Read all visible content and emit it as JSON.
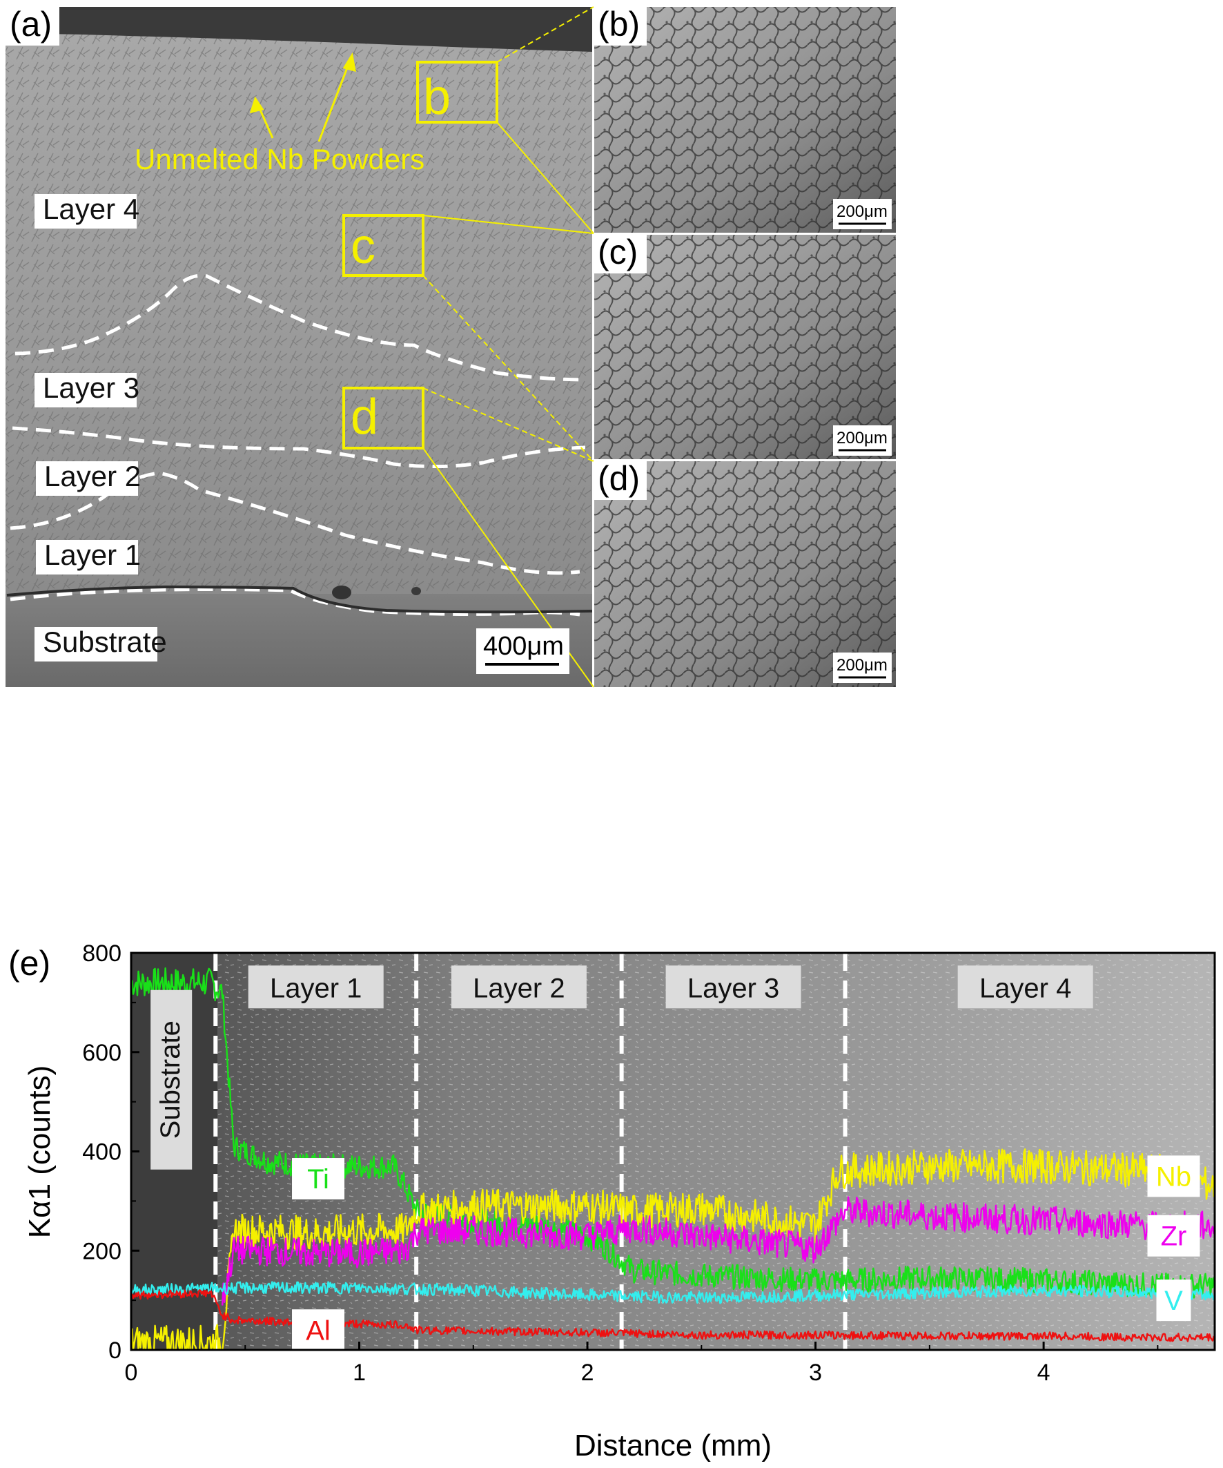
{
  "panels": {
    "a": {
      "label": "(a)",
      "layers": [
        "Layer 4",
        "Layer 3",
        "Layer 2",
        "Layer 1",
        "Substrate"
      ],
      "annotation": "Unmelted Nb Powders",
      "boxes": [
        "b",
        "c",
        "d"
      ],
      "scale_bar": "400μm"
    },
    "b": {
      "label": "(b)",
      "scale_bar": "200μm"
    },
    "c": {
      "label": "(c)",
      "scale_bar": "200μm"
    },
    "d": {
      "label": "(d)",
      "scale_bar": "200μm"
    },
    "e": {
      "label": "(e)"
    }
  },
  "colors": {
    "Ti": "#19e019",
    "Nb": "#f5f000",
    "Zr": "#ee00ee",
    "V": "#33eeee",
    "Al": "#ee1111",
    "annotation": "#f5f000"
  },
  "chart_data": {
    "type": "line",
    "xlabel": "Distance (mm)",
    "ylabel": "Kα1 (counts)",
    "xlim": [
      0,
      4.75
    ],
    "ylim": [
      0,
      800
    ],
    "xticks": [
      "0",
      "1",
      "2",
      "3",
      "4"
    ],
    "yticks": [
      "0",
      "200",
      "400",
      "600",
      "800"
    ],
    "region_labels": [
      "Substrate",
      "Layer 1",
      "Layer 2",
      "Layer 3",
      "Layer 4"
    ],
    "region_boundaries_mm": [
      0.37,
      1.25,
      2.15,
      3.13
    ],
    "series": [
      {
        "name": "Ti",
        "x": [
          0,
          0.3,
          0.35,
          0.4,
          0.45,
          0.6,
          0.8,
          1.0,
          1.15,
          1.2,
          1.25,
          1.5,
          1.8,
          2.0,
          2.1,
          2.2,
          2.5,
          3.0,
          3.13,
          3.5,
          4.0,
          4.5,
          4.75
        ],
        "y": [
          740,
          740,
          740,
          720,
          410,
          380,
          370,
          370,
          370,
          330,
          280,
          260,
          250,
          230,
          200,
          160,
          150,
          140,
          140,
          145,
          140,
          130,
          130
        ]
      },
      {
        "name": "Nb",
        "x": [
          0,
          0.35,
          0.4,
          0.45,
          0.6,
          0.8,
          1.0,
          1.2,
          1.25,
          1.5,
          2.0,
          2.2,
          2.5,
          3.0,
          3.1,
          3.5,
          4.0,
          4.5,
          4.75
        ],
        "y": [
          15,
          15,
          20,
          240,
          240,
          235,
          240,
          240,
          280,
          290,
          290,
          280,
          285,
          250,
          360,
          370,
          370,
          360,
          330
        ]
      },
      {
        "name": "Zr",
        "x": [
          0.4,
          0.45,
          0.6,
          0.8,
          1.0,
          1.2,
          1.25,
          1.5,
          2.0,
          2.2,
          2.5,
          3.0,
          3.13,
          3.5,
          4.0,
          4.5,
          4.75
        ],
        "y": [
          100,
          200,
          200,
          195,
          195,
          200,
          240,
          240,
          230,
          245,
          230,
          205,
          280,
          270,
          260,
          250,
          250
        ]
      },
      {
        "name": "V",
        "x": [
          0,
          0.5,
          1.0,
          1.5,
          2.0,
          2.5,
          3.0,
          3.5,
          4.0,
          4.5,
          4.75
        ],
        "y": [
          120,
          125,
          125,
          120,
          110,
          105,
          110,
          115,
          120,
          115,
          110
        ]
      },
      {
        "name": "Al",
        "x": [
          0,
          0.35,
          0.4,
          0.45,
          0.8,
          1.2,
          1.25,
          1.5,
          2.0,
          2.5,
          3.0,
          3.5,
          4.0,
          4.5,
          4.75
        ],
        "y": [
          110,
          115,
          70,
          60,
          55,
          50,
          40,
          38,
          35,
          30,
          30,
          28,
          28,
          25,
          25
        ]
      }
    ]
  }
}
